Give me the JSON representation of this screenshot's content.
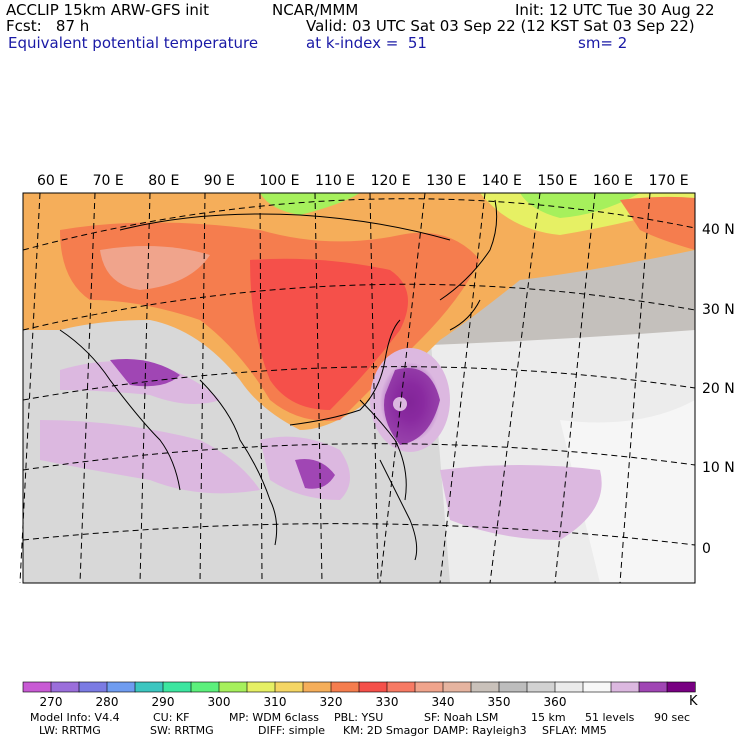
{
  "header": {
    "model": "ACCLIP 15km ARW-GFS init",
    "org": "NCAR/MMM",
    "init": "Init: 12 UTC Tue 30 Aug 22",
    "fcst": "Fcst:   87 h",
    "valid": "Valid: 03 UTC Sat 03 Sep 22 (12 KST Sat 03 Sep 22)",
    "field": "Equivalent potential temperature",
    "level": "at k-index =  51",
    "smooth": "sm= 2"
  },
  "map": {
    "lon_labels": [
      "60 E",
      "70 E",
      "80 E",
      "90 E",
      "100 E",
      "110 E",
      "120 E",
      "130 E",
      "140 E",
      "150 E",
      "160 E",
      "170 E"
    ],
    "lat_labels": [
      "40 N",
      "30 N",
      "20 N",
      "10 N",
      "0"
    ]
  },
  "colorbar": {
    "unit": "K",
    "tick_labels": [
      "270",
      "280",
      "290",
      "300",
      "310",
      "320",
      "330",
      "340",
      "350",
      "360"
    ],
    "colors": [
      "#c85ad4",
      "#9b6edb",
      "#7b7be3",
      "#6f9cf0",
      "#3cc6c0",
      "#3ce6a0",
      "#5cf07c",
      "#a6f05c",
      "#e6f064",
      "#f5d664",
      "#f5ae5a",
      "#f57d4e",
      "#f5504a",
      "#f77a64",
      "#f0a48c",
      "#e6b4a0",
      "#c9c1ba",
      "#bdbdbd",
      "#d2d2d2",
      "#ebebeb",
      "#f8f8f8",
      "#dcb8e0",
      "#a046b4",
      "#780082"
    ]
  },
  "footer": {
    "line1": [
      "Model Info: V4.4",
      "CU: KF",
      "MP: WDM 6class",
      "PBL: YSU",
      "SF: Noah LSM",
      "15 km",
      "51 levels",
      "90 sec"
    ],
    "line2": [
      "LW: RRTMG",
      "SW: RRTMG",
      "DIFF: simple",
      "KM: 2D Smagor",
      "DAMP: Rayleigh3",
      "SFLAY: MM5"
    ]
  }
}
